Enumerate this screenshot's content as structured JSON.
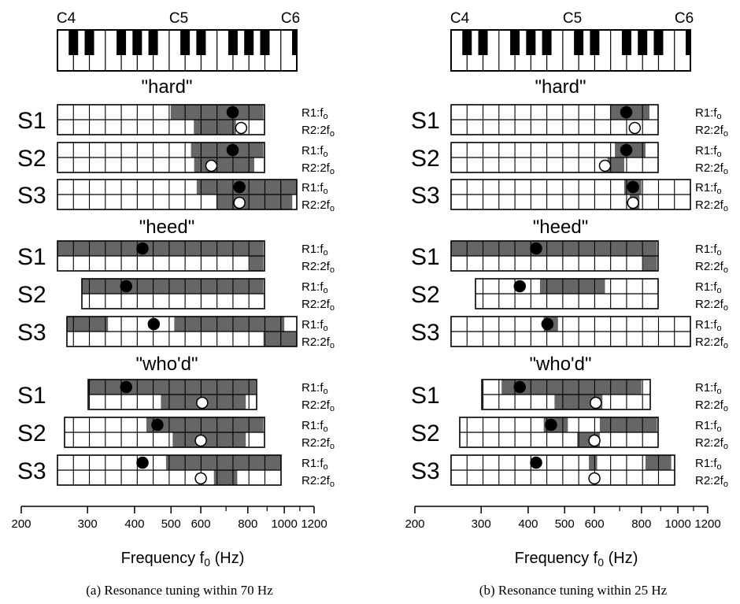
{
  "panels": [
    {
      "caption": "(a) Resonance tuning within 70 Hz",
      "piano_labels": [
        "C4",
        "C5",
        "C6"
      ],
      "x_axis": {
        "label": "Frequency f",
        "label_sub": "0",
        "label_unit": " (Hz)",
        "ticks": [
          "200",
          "300",
          "400",
          "500",
          "600",
          "800",
          "1000",
          "1200"
        ]
      },
      "groups": [
        {
          "title": "\"hard\"",
          "singers": [
            {
              "name": "S1",
              "r1": "R1:f",
              "r1_sub": "o",
              "r2": "R2:2f",
              "r2_sub": "o",
              "shade_r1": [
                [
                  499,
                  880
                ]
              ],
              "shade_r2": [
                [
                  575,
                  744
                ]
              ],
              "r1_dot": 729,
              "r2_dot": 768
            },
            {
              "name": "S2",
              "r1": "R1:f",
              "r1_sub": "o",
              "r2": "R2:2f",
              "r2_sub": "o",
              "shade_r1": [
                [
                  565,
                  880
                ]
              ],
              "shade_r2": [
                [
                  576,
                  832
                ]
              ],
              "r1_dot": 729,
              "r2_dot": 640
            },
            {
              "name": "S3",
              "r1": "R1:f",
              "r1_sub": "o",
              "r2": "R2:2f",
              "r2_sub": "o",
              "shade_r1": [
                [
                  585,
                  1100
                ]
              ],
              "shade_r2": [
                [
                  660,
                  1050
                ]
              ],
              "r1_dot": 760,
              "r2_dot": 760
            }
          ]
        },
        {
          "title": "\"heed\"",
          "singers": [
            {
              "name": "S1",
              "r1": "R1:f",
              "r1_sub": "o",
              "r2": "R2:2f",
              "r2_sub": "o",
              "shade_r1": [
                [
                  250,
                  880
                ]
              ],
              "shade_r2": [
                [
                  808,
                  880
                ]
              ],
              "r1_dot": 420,
              "r2_dot": null
            },
            {
              "name": "S2",
              "r1": "R1:f",
              "r1_sub": "o",
              "r2": "R2:2f",
              "r2_sub": "o",
              "shade_r1": [
                [
                  290,
                  880
                ]
              ],
              "shade_r2": [],
              "r1_dot": 380,
              "r2_dot": null
            },
            {
              "name": "S3",
              "r1": "R1:f",
              "r1_sub": "o",
              "r2": "R2:2f",
              "r2_sub": "o",
              "shade_r1": [
                [
                  264,
                  340
                ],
                [
                  510,
                  1000
                ]
              ],
              "shade_r2": [
                [
                  880,
                  1100
                ]
              ],
              "r1_dot": 450,
              "r2_dot": null
            }
          ]
        },
        {
          "title": "\"who'd\"",
          "singers": [
            {
              "name": "S1",
              "r1": "R1:f",
              "r1_sub": "o",
              "r2": "R2:2f",
              "r2_sub": "o",
              "shade_r1": [
                [
                  300,
                  840
                ]
              ],
              "shade_r2": [
                [
                  470,
                  790
                ]
              ],
              "r1_dot": 380,
              "r2_dot": 605
            },
            {
              "name": "S2",
              "r1": "R1:f",
              "r1_sub": "o",
              "r2": "R2:2f",
              "r2_sub": "o",
              "shade_r1": [
                [
                  430,
                  880
                ]
              ],
              "shade_r2": [
                [
                  505,
                  790
                ]
              ],
              "r1_dot": 460,
              "r2_dot": 600
            },
            {
              "name": "S3",
              "r1": "R1:f",
              "r1_sub": "o",
              "r2": "R2:2f",
              "r2_sub": "o",
              "shade_r1": [
                [
                  485,
                  1000
                ]
              ],
              "shade_r2": [
                [
                  650,
                  750
                ]
              ],
              "r1_dot": 420,
              "r2_dot": 600
            }
          ]
        }
      ]
    },
    {
      "caption": "(b) Resonance tuning within 25 Hz",
      "piano_labels": [
        "C4",
        "C5",
        "C6"
      ],
      "x_axis": {
        "label": "Frequency f",
        "label_sub": "0",
        "label_unit": " (Hz)",
        "ticks": [
          "200",
          "300",
          "400",
          "500",
          "600",
          "800",
          "1000",
          "1200"
        ]
      },
      "groups": [
        {
          "title": "\"hard\"",
          "singers": [
            {
              "name": "S1",
              "r1": "R1:f",
              "r1_sub": "o",
              "r2": "R2:2f",
              "r2_sub": "o",
              "shade_r1": [
                [
                  660,
                  840
                ]
              ],
              "shade_r2": [],
              "r1_dot": 729,
              "r2_dot": 768
            },
            {
              "name": "S2",
              "r1": "R1:f",
              "r1_sub": "o",
              "r2": "R2:2f",
              "r2_sub": "o",
              "shade_r1": [
                [
                  680,
                  820
                ]
              ],
              "shade_r2": [
                [
                  650,
                  720
                ]
              ],
              "r1_dot": 729,
              "r2_dot": 640
            },
            {
              "name": "S3",
              "r1": "R1:f",
              "r1_sub": "o",
              "r2": "R2:2f",
              "r2_sub": "o",
              "shade_r1": [
                [
                  720,
                  800
                ]
              ],
              "shade_r2": [
                [
                  745,
                  790
                ]
              ],
              "r1_dot": 760,
              "r2_dot": 760
            }
          ]
        },
        {
          "title": "\"heed\"",
          "singers": [
            {
              "name": "S1",
              "r1": "R1:f",
              "r1_sub": "o",
              "r2": "R2:2f",
              "r2_sub": "o",
              "shade_r1": [
                [
                  250,
                  880
                ]
              ],
              "shade_r2": [
                [
                  808,
                  880
                ]
              ],
              "r1_dot": 420,
              "r2_dot": null
            },
            {
              "name": "S2",
              "r1": "R1:f",
              "r1_sub": "o",
              "r2": "R2:2f",
              "r2_sub": "o",
              "shade_r1": [
                [
                  430,
                  640
                ]
              ],
              "shade_r2": [],
              "r1_dot": 380,
              "r2_dot": null
            },
            {
              "name": "S3",
              "r1": "R1:f",
              "r1_sub": "o",
              "r2": "R2:2f",
              "r2_sub": "o",
              "shade_r1": [
                [
                  440,
                  480
                ]
              ],
              "shade_r2": [],
              "r1_dot": 450,
              "r2_dot": null
            }
          ]
        },
        {
          "title": "\"who'd\"",
          "singers": [
            {
              "name": "S1",
              "r1": "R1:f",
              "r1_sub": "o",
              "r2": "R2:2f",
              "r2_sub": "o",
              "shade_r1": [
                [
                  340,
                  800
                ]
              ],
              "shade_r2": [
                [
                  470,
                  630
                ]
              ],
              "r1_dot": 380,
              "r2_dot": 605
            },
            {
              "name": "S2",
              "r1": "R1:f",
              "r1_sub": "o",
              "r2": "R2:2f",
              "r2_sub": "o",
              "shade_r1": [
                [
                  440,
                  510
                ],
                [
                  620,
                  880
                ]
              ],
              "shade_r2": [
                [
                  540,
                  620
                ]
              ],
              "r1_dot": 460,
              "r2_dot": 600
            },
            {
              "name": "S3",
              "r1": "R1:f",
              "r1_sub": "o",
              "r2": "R2:2f",
              "r2_sub": "o",
              "shade_r1": [
                [
                  580,
                  610
                ],
                [
                  820,
                  960
                ]
              ],
              "shade_r2": [],
              "r1_dot": 420,
              "r2_dot": 600
            }
          ]
        }
      ]
    }
  ],
  "colors": {
    "shade": "#666666",
    "grid": "#000000",
    "filled_marker": "#000000",
    "open_marker": "#ffffff"
  }
}
